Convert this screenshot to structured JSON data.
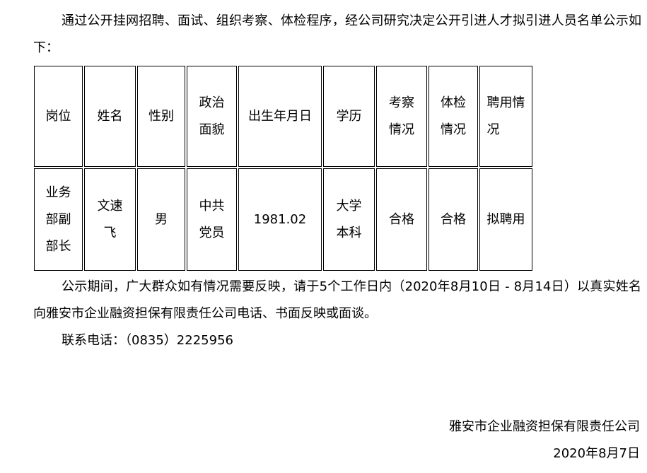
{
  "intro": "通过公开挂网招聘、面试、组织考察、体检程序，经公司研究决定公开引进人才拟引进人员名单公示如下：",
  "table": {
    "headers": [
      "岗位",
      "姓名",
      "性别",
      "政治面貌",
      "出生年月日",
      "学历",
      "考察情况",
      "体检情况",
      "聘用情况"
    ],
    "header_lines": [
      [
        "岗位"
      ],
      [
        "姓名"
      ],
      [
        "性别"
      ],
      [
        "政治",
        "面貌"
      ],
      [
        "出生年月日"
      ],
      [
        "学历"
      ],
      [
        "考察",
        "情况"
      ],
      [
        "体检",
        "情况"
      ],
      [
        "聘用情",
        "况"
      ]
    ],
    "rows": [
      [
        [
          "业务",
          "部副",
          "部长"
        ],
        [
          "文速",
          "飞"
        ],
        [
          "男"
        ],
        [
          "中共",
          "党员"
        ],
        [
          "1981.02"
        ],
        [
          "大学",
          "本科"
        ],
        [
          "合格"
        ],
        [
          "合格"
        ],
        [
          "拟聘用"
        ]
      ]
    ]
  },
  "notice": "公示期间，广大群众如有情况需要反映，请于5个工作日内（2020年8月10日 - 8月14日）以真实姓名向雅安市企业融资担保有限责任公司电话、书面反映或面谈。",
  "contact": "联系电话：（0835）2225956",
  "signature": {
    "company": "雅安市企业融资担保有限责任公司",
    "date": "2020年8月7日"
  }
}
